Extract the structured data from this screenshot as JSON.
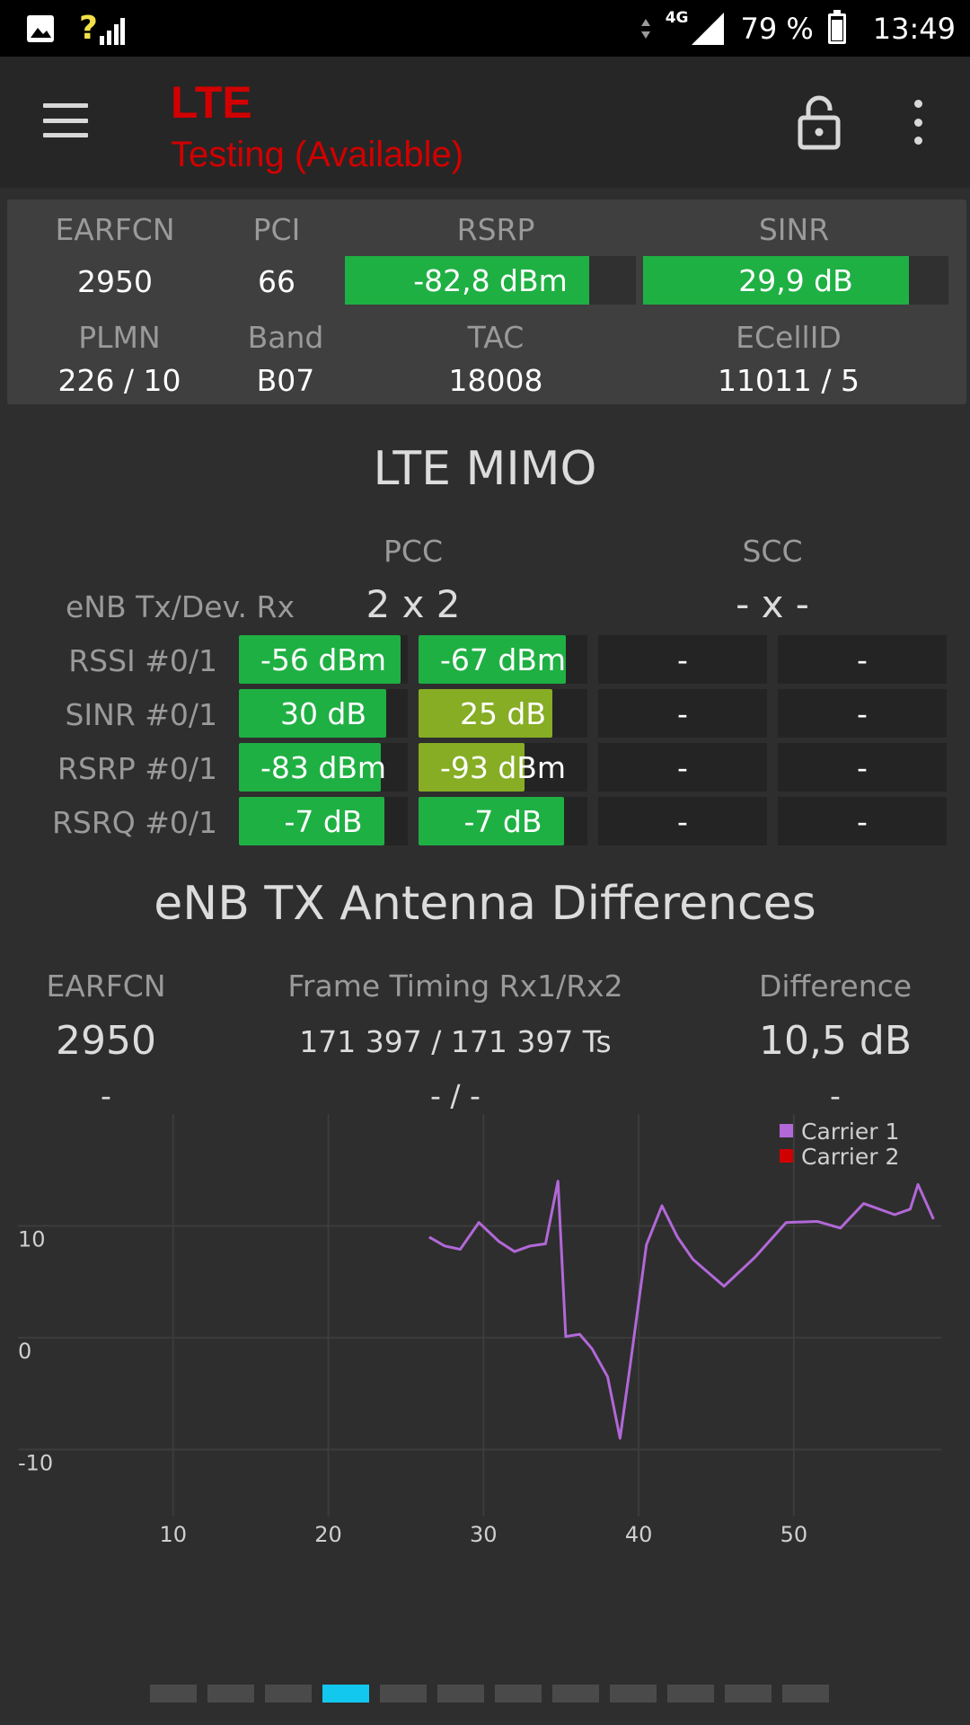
{
  "status_bar": {
    "signal_indicator": "?",
    "network": "4G",
    "battery": "79 %",
    "battery_fraction": 0.79,
    "time": "13:49",
    "icons": [
      "image-notification-icon",
      "signal-unknown-icon",
      "data-arrows-icon",
      "cell-signal-icon",
      "battery-icon"
    ]
  },
  "appbar": {
    "title": "LTE",
    "subtitle": "Testing (Available)",
    "title_color": "#d10000",
    "icons": [
      "menu-icon",
      "unlock-icon",
      "more-vert-icon"
    ]
  },
  "cell_info": {
    "earfcn_label": "EARFCN",
    "earfcn": "2950",
    "pci_label": "PCI",
    "pci": "66",
    "rsrp_label": "RSRP",
    "rsrp": "-82,8 dBm",
    "rsrp_fraction": 0.84,
    "sinr_label": "SINR",
    "sinr": "29,9 dB",
    "sinr_fraction": 0.87,
    "plmn_label": "PLMN",
    "plmn": "226 / 10",
    "band_label": "Band",
    "band": "B07",
    "tac_label": "TAC",
    "tac": "18008",
    "ecellid_label": "ECellID",
    "ecellid": "11011 / 5",
    "good_color": "#1fb043"
  },
  "mimo": {
    "title": "LTE MIMO",
    "pcc_label": "PCC",
    "scc_label": "SCC",
    "enb_label": "eNB Tx/Dev. Rx",
    "pcc_mimo": "2 x 2",
    "scc_mimo": "- x -",
    "rows": [
      {
        "label": "RSSI #0/1",
        "cells": [
          {
            "text": "-56 dBm",
            "fraction": 0.96,
            "color": "#1fb043"
          },
          {
            "text": "-67 dBm",
            "fraction": 0.87,
            "color": "#1fb043"
          },
          {
            "text": "-",
            "fraction": 0,
            "color": "#1fb043"
          },
          {
            "text": "-",
            "fraction": 0,
            "color": "#1fb043"
          }
        ]
      },
      {
        "label": "SINR #0/1",
        "cells": [
          {
            "text": "30 dB",
            "fraction": 0.87,
            "color": "#1fb043"
          },
          {
            "text": "25 dB",
            "fraction": 0.79,
            "color": "#86ad24"
          },
          {
            "text": "-",
            "fraction": 0,
            "color": "#1fb043"
          },
          {
            "text": "-",
            "fraction": 0,
            "color": "#1fb043"
          }
        ]
      },
      {
        "label": "RSRP #0/1",
        "cells": [
          {
            "text": "-83 dBm",
            "fraction": 0.84,
            "color": "#1fb043"
          },
          {
            "text": "-93 dBm",
            "fraction": 0.63,
            "color": "#86ad24"
          },
          {
            "text": "-",
            "fraction": 0,
            "color": "#1fb043"
          },
          {
            "text": "-",
            "fraction": 0,
            "color": "#1fb043"
          }
        ]
      },
      {
        "label": "RSRQ #0/1",
        "cells": [
          {
            "text": "-7 dB",
            "fraction": 0.86,
            "color": "#1fb043"
          },
          {
            "text": "-7 dB",
            "fraction": 0.86,
            "color": "#1fb043"
          },
          {
            "text": "-",
            "fraction": 0,
            "color": "#1fb043"
          },
          {
            "text": "-",
            "fraction": 0,
            "color": "#1fb043"
          }
        ]
      }
    ]
  },
  "antenna": {
    "title": "eNB TX Antenna Differences",
    "earfcn_label": "EARFCN",
    "timing_label": "Frame Timing Rx1/Rx2",
    "diff_label": "Difference",
    "row1": {
      "earfcn": "2950",
      "timing": "171 397 / 171 397 Ts",
      "diff": "10,5 dB"
    },
    "row2": {
      "earfcn": "-",
      "timing": "- / -",
      "diff": "-"
    }
  },
  "chart_data": {
    "type": "line",
    "title": "",
    "xlabel": "",
    "ylabel": "",
    "xlim": [
      0,
      59.5
    ],
    "ylim": [
      -16,
      20
    ],
    "x_ticks": [
      10,
      20,
      30,
      40,
      50
    ],
    "y_ticks": [
      10,
      0,
      -10
    ],
    "grid": true,
    "legend_position": "top-right",
    "series": [
      {
        "name": "Carrier 1",
        "color": "#b268d8",
        "x": [
          26.5,
          27.5,
          28.5,
          29.7,
          31,
          32,
          33,
          34,
          34.8,
          35.3,
          36.2,
          37,
          38,
          38.8,
          39.5,
          40.5,
          41.5,
          42.5,
          43.5,
          45.5,
          47.5,
          49.5,
          51.5,
          53,
          54.5,
          56.5,
          57.5,
          58,
          59
        ],
        "y": [
          9,
          8.2,
          7.9,
          10.3,
          8.6,
          7.7,
          8.2,
          8.4,
          14,
          0.1,
          0.3,
          -1,
          -3.5,
          -9,
          -2,
          8.3,
          11.8,
          9,
          7,
          4.6,
          7.2,
          10.3,
          10.4,
          9.8,
          12,
          11,
          11.5,
          13.7,
          10.6
        ]
      },
      {
        "name": "Carrier 2",
        "color": "#d10000",
        "x": [],
        "y": []
      }
    ]
  },
  "pager": {
    "count": 12,
    "active": 3,
    "active_color": "#13c8ee"
  }
}
